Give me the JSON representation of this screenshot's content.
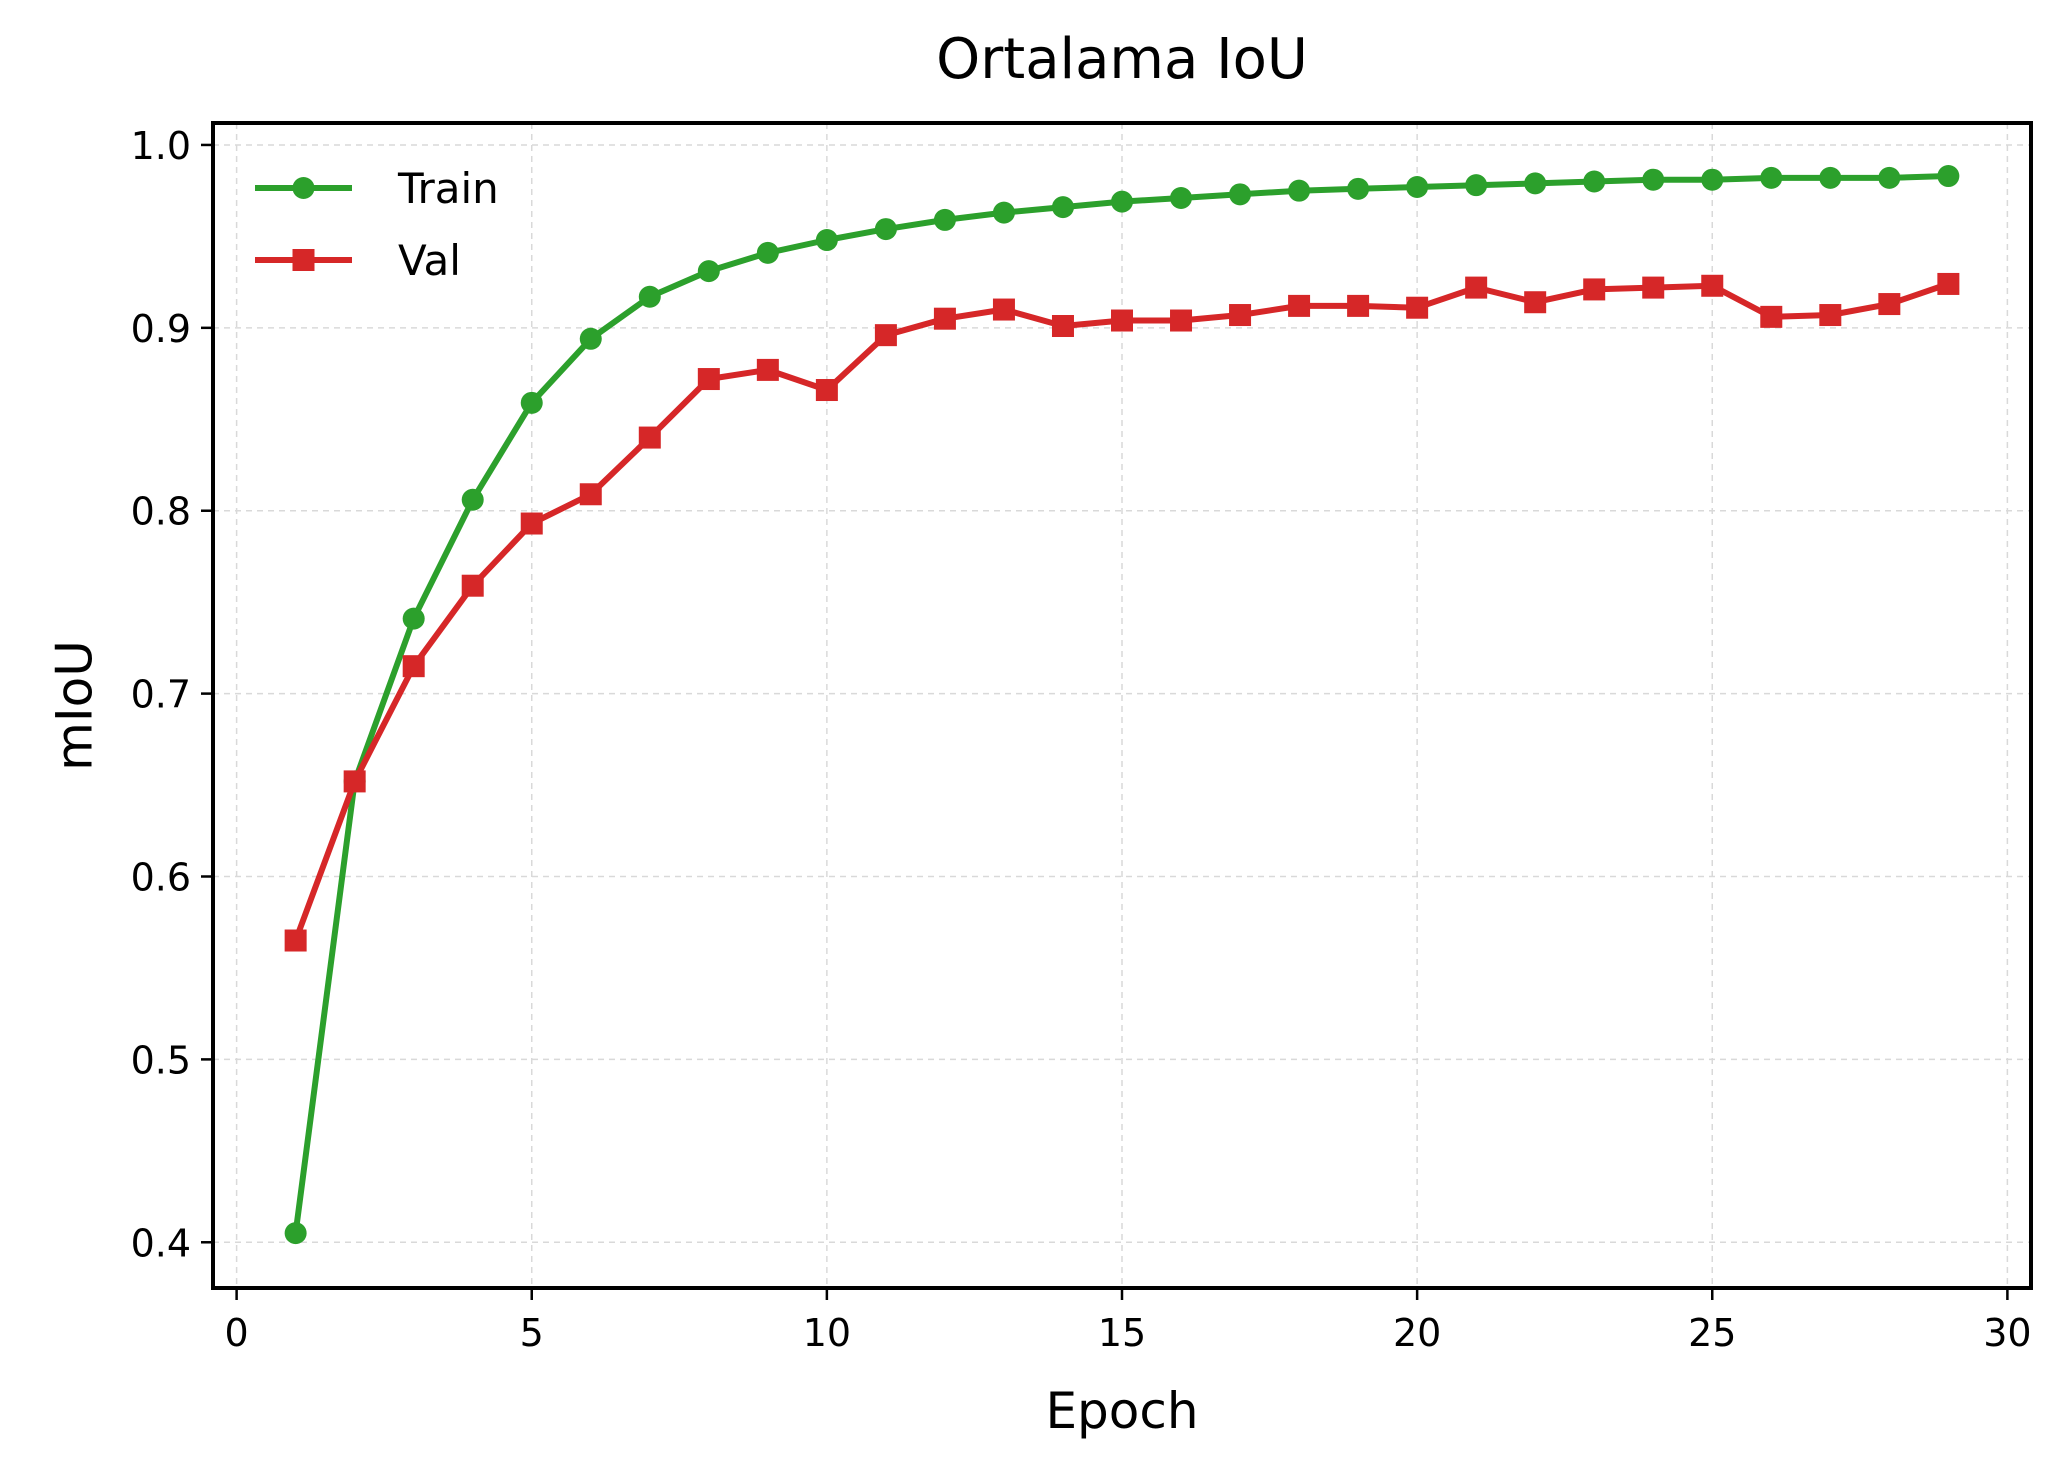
{
  "chart_data": {
    "type": "line",
    "title": "Ortalama IoU",
    "xlabel": "Epoch",
    "ylabel": "mIoU",
    "xlim": [
      -0.4,
      30.4
    ],
    "ylim": [
      0.375,
      1.012
    ],
    "xticks": [
      0,
      5,
      10,
      15,
      20,
      25,
      30
    ],
    "yticks": [
      0.4,
      0.5,
      0.6,
      0.7,
      0.8,
      0.9,
      1.0
    ],
    "xtick_labels": [
      "0",
      "5",
      "10",
      "15",
      "20",
      "25",
      "30"
    ],
    "ytick_labels": [
      "0.4",
      "0.5",
      "0.6",
      "0.7",
      "0.8",
      "0.9",
      "1.0"
    ],
    "grid": true,
    "legend_position": "top-left",
    "x": [
      1,
      2,
      3,
      4,
      5,
      6,
      7,
      8,
      9,
      10,
      11,
      12,
      13,
      14,
      15,
      16,
      17,
      18,
      19,
      20,
      21,
      22,
      23,
      24,
      25,
      26,
      27,
      28,
      29
    ],
    "series": [
      {
        "name": "Train",
        "color": "#2ca02c",
        "marker": "circle",
        "values": [
          0.405,
          0.652,
          0.741,
          0.806,
          0.859,
          0.894,
          0.917,
          0.931,
          0.941,
          0.948,
          0.954,
          0.959,
          0.963,
          0.966,
          0.969,
          0.971,
          0.973,
          0.975,
          0.976,
          0.977,
          0.978,
          0.979,
          0.98,
          0.981,
          0.981,
          0.982,
          0.982,
          0.982,
          0.983
        ]
      },
      {
        "name": "Val",
        "color": "#d62728",
        "marker": "square",
        "values": [
          0.565,
          0.652,
          0.715,
          0.759,
          0.793,
          0.809,
          0.84,
          0.872,
          0.877,
          0.866,
          0.896,
          0.905,
          0.91,
          0.901,
          0.904,
          0.904,
          0.907,
          0.912,
          0.912,
          0.911,
          0.922,
          0.914,
          0.921,
          0.922,
          0.923,
          0.906,
          0.907,
          0.913,
          0.924
        ]
      }
    ]
  }
}
